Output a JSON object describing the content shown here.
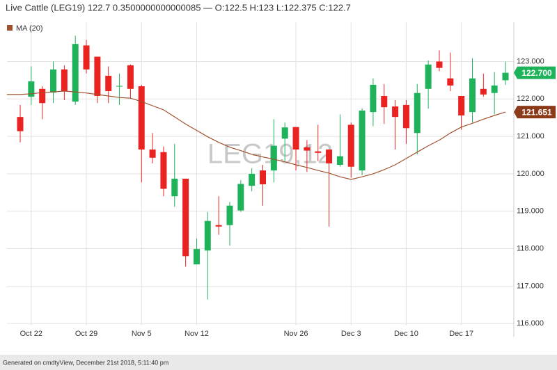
{
  "chart_data": {
    "type": "candlestick",
    "title": "Live Cattle (LEG19) 122.7 0.3500000000000085 — O:122.5 H:123 L:122.375 C:122.7",
    "watermark": "LEG19,12",
    "footer": "Generated on cmdtyView, December 21st 2018, 5:11:40 pm",
    "categories": [
      null,
      "Oct 22",
      null,
      null,
      null,
      null,
      "Oct 29",
      null,
      null,
      null,
      null,
      "Nov 5",
      null,
      null,
      null,
      null,
      "Nov 12",
      null,
      null,
      null,
      null,
      null,
      null,
      null,
      null,
      "Nov 26",
      null,
      null,
      null,
      null,
      "Dec 3",
      null,
      null,
      null,
      null,
      "Dec 10",
      null,
      null,
      null,
      null,
      "Dec 17",
      null,
      null,
      null,
      null
    ],
    "open": [
      121.52,
      122.06,
      122.27,
      122.17,
      122.79,
      121.93,
      123.43,
      123.13,
      122.62,
      122.33,
      122.9,
      122.34,
      120.65,
      120.58,
      119.4,
      119.87,
      117.58,
      117.95,
      118.63,
      118.63,
      119.02,
      119.68,
      120.09,
      120.09,
      120.94,
      121.25,
      120.71,
      120.6,
      120.65,
      120.24,
      121.31,
      120.09,
      121.65,
      122.08,
      121.8,
      121.84,
      121.09,
      122.27,
      123.0,
      122.55,
      122.08,
      121.65,
      122.27,
      122.16,
      122.5
    ],
    "high": [
      121.84,
      122.87,
      122.34,
      123.0,
      122.9,
      123.69,
      123.58,
      123.13,
      122.87,
      122.68,
      122.92,
      122.38,
      121.09,
      120.73,
      120.8,
      119.87,
      118.27,
      118.98,
      119.4,
      119.25,
      119.83,
      120.15,
      120.24,
      121.46,
      121.37,
      121.25,
      120.9,
      121.31,
      120.65,
      121.59,
      121.37,
      121.75,
      122.55,
      122.4,
      121.97,
      121.97,
      122.4,
      123.03,
      123.3,
      123.24,
      122.08,
      123.09,
      122.68,
      122.72,
      123.0
    ],
    "low": [
      120.84,
      121.84,
      121.46,
      121.89,
      121.97,
      121.84,
      122.68,
      121.89,
      121.89,
      121.84,
      122.02,
      119.77,
      120.28,
      119.4,
      119.12,
      117.52,
      117.58,
      116.64,
      118.37,
      118.08,
      118.98,
      119.53,
      119.15,
      119.77,
      120.34,
      120.09,
      120.05,
      120.34,
      118.59,
      120.19,
      119.9,
      119.96,
      121.27,
      121.33,
      120.65,
      120.8,
      120.52,
      121.74,
      122.74,
      122.21,
      121.18,
      121.37,
      122.06,
      121.59,
      122.375
    ],
    "close": [
      121.14,
      122.47,
      121.89,
      122.79,
      122.21,
      123.47,
      122.79,
      122.08,
      122.21,
      122.35,
      122.27,
      120.65,
      120.43,
      119.6,
      119.87,
      117.8,
      117.99,
      118.74,
      118.59,
      119.15,
      119.73,
      120.0,
      119.72,
      120.75,
      121.24,
      120.65,
      120.62,
      120.56,
      120.28,
      120.47,
      120.19,
      121.69,
      122.38,
      121.78,
      121.52,
      121.22,
      122.16,
      122.92,
      122.83,
      122.36,
      121.56,
      122.55,
      122.12,
      122.36,
      122.7
    ],
    "up_color": "#1eb35a",
    "down_color": "#ea2220",
    "ma": {
      "name": "MA (20)",
      "color": "#a0522d",
      "values": [
        122.12,
        122.14,
        122.17,
        122.19,
        122.21,
        122.19,
        122.16,
        122.12,
        122.08,
        122.04,
        122.02,
        121.93,
        121.82,
        121.71,
        121.52,
        121.33,
        121.16,
        120.99,
        120.84,
        120.71,
        120.62,
        120.52,
        120.45,
        120.39,
        120.32,
        120.24,
        120.17,
        120.09,
        120.02,
        119.92,
        119.85,
        119.92,
        120.0,
        120.11,
        120.24,
        120.41,
        120.58,
        120.75,
        120.9,
        121.09,
        121.25,
        121.35,
        121.46,
        121.56,
        121.65
      ],
      "last_label": "121.651"
    },
    "last_label": "122.700",
    "ylim": [
      115.65,
      124.05
    ],
    "yticks": [
      {
        "value": 116,
        "label": "116.000"
      },
      {
        "value": 117,
        "label": "117.000"
      },
      {
        "value": 118,
        "label": "118.000"
      },
      {
        "value": 119,
        "label": "119.000"
      },
      {
        "value": 120,
        "label": "120.000"
      },
      {
        "value": 121,
        "label": "121.000"
      },
      {
        "value": 122,
        "label": "122.000"
      },
      {
        "value": 123,
        "label": "123.000"
      }
    ],
    "grid": true
  }
}
